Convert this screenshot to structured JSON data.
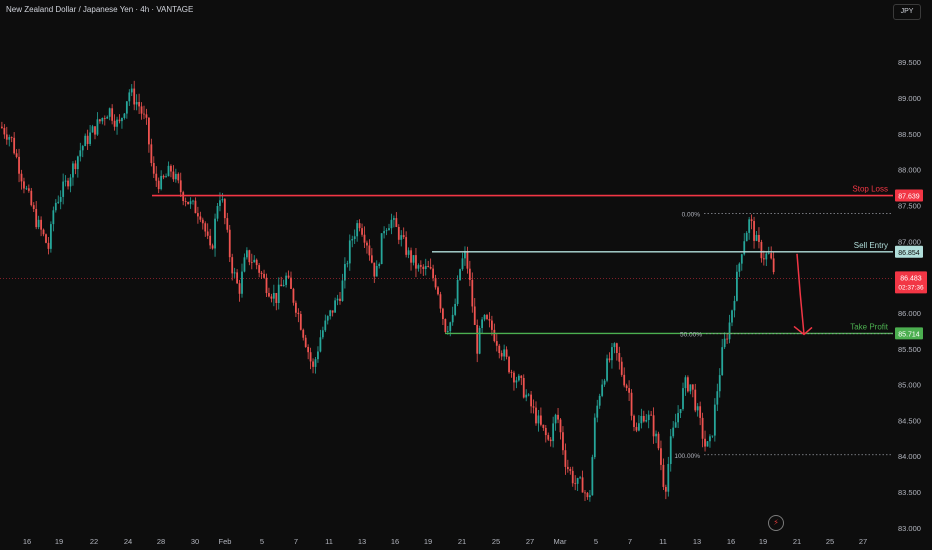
{
  "header": {
    "title": "New Zealand Dollar / Japanese Yen · 4h · VANTAGE",
    "currency_button": "JPY"
  },
  "icons": {
    "replay": "lightning-bolt-icon"
  },
  "colors": {
    "background": "#0d0d0d",
    "up": "#26a69a",
    "down": "#ef5350",
    "stop_loss": "#f23645",
    "sell_entry": "#b2dfdb",
    "take_profit": "#4caf50",
    "fib": "#9598a1",
    "arrow": "#f23645",
    "current_price": "#f23645"
  },
  "chart_data": {
    "type": "candlestick",
    "title": "New Zealand Dollar / Japanese Yen · 4h · VANTAGE",
    "ylabel": "JPY",
    "ylim": [
      82.9,
      89.95
    ],
    "y_ticks": [
      "89.500",
      "89.000",
      "88.500",
      "88.000",
      "87.500",
      "87.000",
      "86.500",
      "86.000",
      "85.500",
      "85.000",
      "84.500",
      "84.000",
      "83.500",
      "83.000"
    ],
    "x_ticks": [
      "16",
      "19",
      "22",
      "24",
      "28",
      "30",
      "Feb",
      "5",
      "7",
      "11",
      "13",
      "16",
      "19",
      "21",
      "25",
      "27",
      "Mar",
      "5",
      "7",
      "11",
      "13",
      "16",
      "19",
      "21",
      "25",
      "27"
    ],
    "grid": false,
    "price_path": [
      [
        0,
        88.6
      ],
      [
        10,
        88.45
      ],
      [
        22,
        87.85
      ],
      [
        35,
        87.3
      ],
      [
        48,
        86.9
      ],
      [
        53,
        87.5
      ],
      [
        65,
        87.8
      ],
      [
        80,
        88.3
      ],
      [
        95,
        88.6
      ],
      [
        108,
        88.85
      ],
      [
        118,
        88.6
      ],
      [
        128,
        89.1
      ],
      [
        138,
        88.9
      ],
      [
        146,
        88.6
      ],
      [
        152,
        87.9
      ],
      [
        160,
        87.8
      ],
      [
        170,
        88.0
      ],
      [
        180,
        87.7
      ],
      [
        190,
        87.5
      ],
      [
        200,
        87.4
      ],
      [
        210,
        86.8
      ],
      [
        218,
        87.7
      ],
      [
        222,
        87.5
      ],
      [
        230,
        86.7
      ],
      [
        238,
        86.3
      ],
      [
        245,
        86.8
      ],
      [
        255,
        86.7
      ],
      [
        265,
        86.4
      ],
      [
        275,
        86.2
      ],
      [
        285,
        86.5
      ],
      [
        295,
        86.1
      ],
      [
        305,
        85.6
      ],
      [
        312,
        85.2
      ],
      [
        320,
        85.7
      ],
      [
        330,
        86.0
      ],
      [
        340,
        86.3
      ],
      [
        350,
        87.0
      ],
      [
        358,
        87.3
      ],
      [
        366,
        87.0
      ],
      [
        375,
        86.5
      ],
      [
        383,
        87.2
      ],
      [
        390,
        87.3
      ],
      [
        398,
        87.1
      ],
      [
        408,
        86.8
      ],
      [
        418,
        86.6
      ],
      [
        428,
        86.6
      ],
      [
        436,
        86.4
      ],
      [
        444,
        85.8
      ],
      [
        452,
        85.9
      ],
      [
        460,
        86.7
      ],
      [
        465,
        86.8
      ],
      [
        470,
        86.3
      ],
      [
        476,
        85.5
      ],
      [
        482,
        85.9
      ],
      [
        490,
        85.8
      ],
      [
        500,
        85.5
      ],
      [
        510,
        85.2
      ],
      [
        520,
        85.0
      ],
      [
        530,
        84.7
      ],
      [
        540,
        84.4
      ],
      [
        548,
        84.2
      ],
      [
        556,
        84.6
      ],
      [
        565,
        83.9
      ],
      [
        575,
        83.6
      ],
      [
        582,
        83.6
      ],
      [
        588,
        83.3
      ],
      [
        594,
        84.5
      ],
      [
        600,
        85.0
      ],
      [
        607,
        85.3
      ],
      [
        614,
        85.5
      ],
      [
        620,
        85.2
      ],
      [
        628,
        84.9
      ],
      [
        635,
        84.3
      ],
      [
        642,
        84.6
      ],
      [
        650,
        84.5
      ],
      [
        658,
        84.1
      ],
      [
        664,
        83.5
      ],
      [
        670,
        84.2
      ],
      [
        677,
        84.6
      ],
      [
        684,
        85.0
      ],
      [
        690,
        85.0
      ],
      [
        695,
        84.7
      ],
      [
        700,
        84.4
      ],
      [
        705,
        84.1
      ],
      [
        710,
        84.2
      ],
      [
        716,
        84.9
      ],
      [
        722,
        85.5
      ],
      [
        728,
        85.8
      ],
      [
        735,
        86.4
      ],
      [
        742,
        87.0
      ],
      [
        749,
        87.3
      ],
      [
        755,
        87.0
      ],
      [
        762,
        86.8
      ],
      [
        768,
        86.8
      ],
      [
        775,
        86.5
      ]
    ],
    "levels": [
      {
        "label": "Stop Loss",
        "value": "87.639",
        "price": 87.639
      },
      {
        "label": "Sell Entry",
        "value": "86.854",
        "price": 86.854
      },
      {
        "label": "Take Profit",
        "value": "85.714",
        "price": 85.714
      }
    ],
    "current_price": {
      "value": "86.483",
      "countdown": "02:37:36",
      "price": 86.483
    },
    "fibonacci": [
      {
        "label": "0.00%",
        "price": 87.39
      },
      {
        "label": "50.00%",
        "price": 85.71
      },
      {
        "label": "100.00%",
        "price": 84.02
      }
    ],
    "arrow": {
      "from": 86.854,
      "to": 85.714
    }
  }
}
